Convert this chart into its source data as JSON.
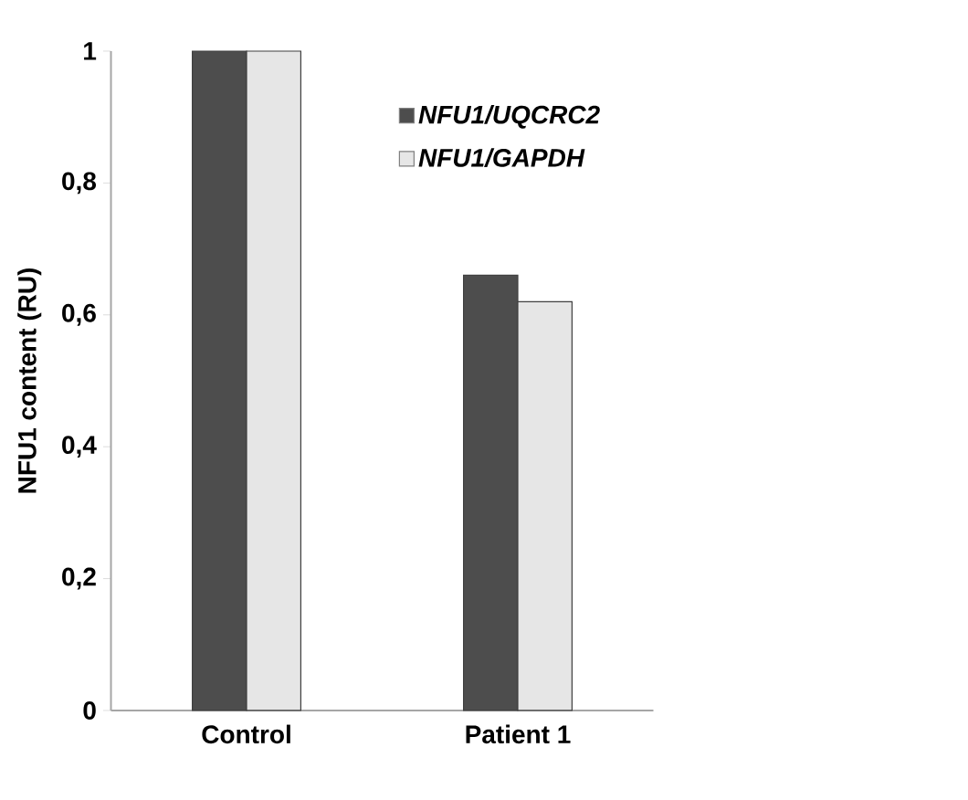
{
  "chart_data": {
    "type": "bar",
    "ylabel": "NFU1 content (RU)",
    "categories": [
      "Control",
      "Patient 1"
    ],
    "series": [
      {
        "name": "NFU1/UQCRC2",
        "color": "#4d4d4d",
        "values": [
          1,
          0.66
        ]
      },
      {
        "name": "NFU1/GAPDH",
        "color": "#e6e6e6",
        "values": [
          1,
          0.62
        ]
      }
    ],
    "ylim": [
      0,
      1
    ],
    "yticks": [
      0,
      {
        "value": 0.2,
        "label": "0,2"
      },
      {
        "value": 0.4,
        "label": "0,4"
      },
      {
        "value": 0.6,
        "label": "0,6"
      },
      {
        "value": 0.8,
        "label": "0,8"
      },
      1
    ],
    "grid": false,
    "legend": "top right"
  }
}
